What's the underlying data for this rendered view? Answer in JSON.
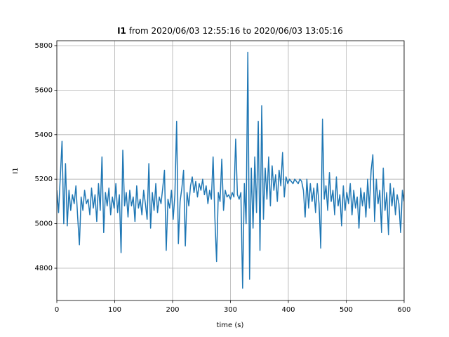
{
  "chart_data": {
    "type": "line",
    "title_variable": "I1",
    "title": "from 2020/06/03 12:55:16 to 2020/06/03 13:05:16",
    "xlabel": "time (s)",
    "ylabel": "I1",
    "xlim": [
      0,
      600
    ],
    "ylim": [
      4655,
      5822
    ],
    "xticks": [
      0,
      100,
      200,
      300,
      400,
      500,
      600
    ],
    "yticks": [
      4800,
      5000,
      5200,
      5400,
      5600,
      5800
    ],
    "grid": true,
    "color": "#1f77b4",
    "x": [
      0,
      3,
      6,
      9,
      12,
      15,
      18,
      21,
      24,
      27,
      30,
      33,
      36,
      39,
      42,
      45,
      48,
      51,
      54,
      57,
      60,
      63,
      66,
      69,
      72,
      75,
      78,
      81,
      84,
      87,
      90,
      93,
      96,
      99,
      102,
      105,
      108,
      111,
      114,
      117,
      120,
      123,
      126,
      129,
      132,
      135,
      138,
      141,
      144,
      147,
      150,
      153,
      156,
      159,
      162,
      165,
      168,
      171,
      174,
      177,
      180,
      183,
      186,
      189,
      192,
      195,
      198,
      201,
      204,
      207,
      210,
      213,
      216,
      219,
      222,
      225,
      228,
      231,
      234,
      237,
      240,
      243,
      246,
      249,
      252,
      255,
      258,
      261,
      264,
      267,
      270,
      273,
      276,
      279,
      282,
      285,
      288,
      291,
      294,
      297,
      300,
      303,
      306,
      309,
      312,
      315,
      318,
      321,
      324,
      327,
      330,
      333,
      336,
      339,
      342,
      345,
      348,
      351,
      354,
      357,
      360,
      363,
      366,
      369,
      372,
      375,
      378,
      381,
      384,
      387,
      390,
      393,
      396,
      399,
      402,
      405,
      408,
      411,
      414,
      417,
      420,
      423,
      426,
      429,
      432,
      435,
      438,
      441,
      444,
      447,
      450,
      453,
      456,
      459,
      462,
      465,
      468,
      471,
      474,
      477,
      480,
      483,
      486,
      489,
      492,
      495,
      498,
      501,
      504,
      507,
      510,
      513,
      516,
      519,
      522,
      525,
      528,
      531,
      534,
      537,
      540,
      543,
      546,
      549,
      552,
      555,
      558,
      561,
      564,
      567,
      570,
      573,
      576,
      579,
      582,
      585,
      588,
      591,
      594,
      597,
      600
    ],
    "values": [
      5150,
      5050,
      5210,
      5370,
      5000,
      5270,
      4990,
      5150,
      5060,
      5130,
      5090,
      5170,
      5030,
      4905,
      5120,
      5060,
      5150,
      5090,
      5110,
      5040,
      5160,
      5070,
      5130,
      5010,
      5180,
      5060,
      5300,
      4960,
      5140,
      5080,
      5160,
      5040,
      5120,
      5070,
      5180,
      5050,
      5130,
      4870,
      5330,
      5080,
      5140,
      5030,
      5150,
      5080,
      5120,
      5010,
      5170,
      5070,
      5110,
      5040,
      5150,
      5090,
      5020,
      5270,
      4980,
      5140,
      5060,
      5180,
      5050,
      5120,
      5090,
      5160,
      5240,
      4880,
      5110,
      5070,
      5150,
      5020,
      5130,
      5460,
      4910,
      5100,
      5160,
      5240,
      4900,
      5140,
      5080,
      5170,
      5210,
      5140,
      5190,
      5120,
      5180,
      5150,
      5200,
      5130,
      5170,
      5090,
      5150,
      5110,
      5300,
      5030,
      4830,
      5140,
      5100,
      5290,
      5060,
      5150,
      5120,
      5130,
      5110,
      5140,
      5120,
      5380,
      5130,
      5110,
      5140,
      4710,
      5180,
      5000,
      5770,
      4750,
      5250,
      4980,
      5300,
      5050,
      5460,
      4880,
      5530,
      5020,
      5250,
      5110,
      5300,
      5080,
      5260,
      5150,
      5220,
      5100,
      5240,
      5170,
      5320,
      5120,
      5210,
      5180,
      5200,
      5190,
      5180,
      5200,
      5190,
      5180,
      5200,
      5190,
      5150,
      5030,
      5200,
      5070,
      5180,
      5100,
      5160,
      5050,
      5180,
      5090,
      4890,
      5470,
      5110,
      5170,
      5060,
      5230,
      5100,
      5150,
      5040,
      5210,
      5080,
      5130,
      4990,
      5170,
      5060,
      5140,
      5090,
      5180,
      5040,
      5150,
      5070,
      5120,
      4980,
      5160,
      5080,
      5140,
      5030,
      5200,
      5070,
      5240,
      5310,
      5010,
      5200,
      5090,
      5150,
      4960,
      5250,
      5060,
      5140,
      4950,
      5180,
      5080,
      5160,
      5040,
      5130,
      5090,
      4960,
      5150,
      5100
    ]
  }
}
